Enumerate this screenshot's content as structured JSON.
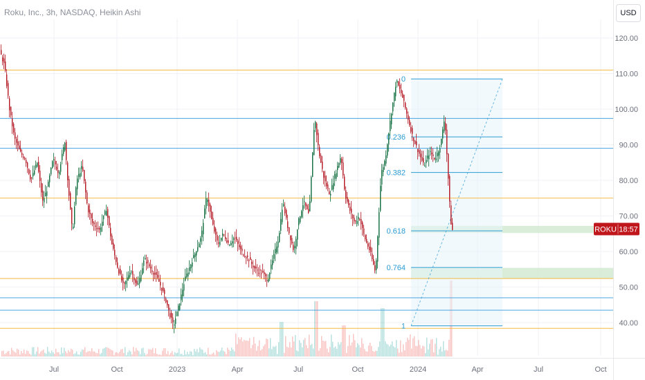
{
  "header": {
    "title": "Roku, Inc., 3h, NASDAQ, Heikin Ashi",
    "currency": "USD"
  },
  "price_tag": {
    "symbol": "ROKU",
    "countdown": "18:57",
    "price": 66.3
  },
  "colors": {
    "up": "#26a69a",
    "down": "#ef5350",
    "candle_up": "#0b6b3a",
    "candle_down": "#b2131f",
    "orange_level": "#f5b942",
    "blue_level": "#4aa3df",
    "fib": "#2a9bd3",
    "zone": "#cfe9cf",
    "tag": "#c0171d"
  },
  "chart_data": {
    "type": "candlestick",
    "title": "Roku, Inc., 3h, NASDAQ, Heikin Ashi",
    "y_axis": {
      "ticks": [
        "120.00",
        "110.00",
        "100.00",
        "90.00",
        "80.00",
        "70.00",
        "60.00",
        "50.00",
        "40.00"
      ],
      "range": [
        36,
        124
      ]
    },
    "x_axis": {
      "ticks": [
        "Jul",
        "Oct",
        "2023",
        "Apr",
        "Jul",
        "Oct",
        "2024",
        "Apr",
        "Jul",
        "Oct"
      ]
    },
    "price_path": [
      [
        0,
        117
      ],
      [
        8,
        112
      ],
      [
        15,
        100
      ],
      [
        22,
        92
      ],
      [
        30,
        88
      ],
      [
        38,
        86
      ],
      [
        46,
        80
      ],
      [
        55,
        85
      ],
      [
        63,
        74
      ],
      [
        70,
        78
      ],
      [
        78,
        86
      ],
      [
        86,
        82
      ],
      [
        95,
        91
      ],
      [
        100,
        78
      ],
      [
        106,
        65
      ],
      [
        112,
        80
      ],
      [
        120,
        84
      ],
      [
        128,
        72
      ],
      [
        135,
        68
      ],
      [
        145,
        66
      ],
      [
        155,
        72
      ],
      [
        163,
        62
      ],
      [
        172,
        55
      ],
      [
        180,
        50
      ],
      [
        190,
        55
      ],
      [
        200,
        50
      ],
      [
        210,
        58
      ],
      [
        220,
        55
      ],
      [
        230,
        52
      ],
      [
        240,
        47
      ],
      [
        247,
        42
      ],
      [
        252,
        39
      ],
      [
        260,
        45
      ],
      [
        268,
        52
      ],
      [
        276,
        56
      ],
      [
        284,
        60
      ],
      [
        292,
        64
      ],
      [
        300,
        76
      ],
      [
        308,
        68
      ],
      [
        316,
        62
      ],
      [
        324,
        65
      ],
      [
        332,
        62
      ],
      [
        340,
        64
      ],
      [
        350,
        60
      ],
      [
        360,
        58
      ],
      [
        370,
        55
      ],
      [
        380,
        54
      ],
      [
        388,
        52
      ],
      [
        396,
        58
      ],
      [
        404,
        64
      ],
      [
        410,
        74
      ],
      [
        418,
        66
      ],
      [
        426,
        60
      ],
      [
        432,
        68
      ],
      [
        440,
        74
      ],
      [
        448,
        70
      ],
      [
        456,
        98
      ],
      [
        462,
        88
      ],
      [
        470,
        80
      ],
      [
        478,
        76
      ],
      [
        486,
        82
      ],
      [
        494,
        87
      ],
      [
        500,
        76
      ],
      [
        506,
        72
      ],
      [
        514,
        68
      ],
      [
        520,
        70
      ],
      [
        528,
        64
      ],
      [
        536,
        60
      ],
      [
        544,
        54
      ],
      [
        552,
        82
      ],
      [
        558,
        86
      ],
      [
        566,
        98
      ],
      [
        574,
        108
      ],
      [
        582,
        104
      ],
      [
        590,
        98
      ],
      [
        598,
        92
      ],
      [
        606,
        88
      ],
      [
        614,
        84
      ],
      [
        622,
        88
      ],
      [
        630,
        86
      ],
      [
        638,
        90
      ],
      [
        644,
        98
      ],
      [
        648,
        84
      ],
      [
        652,
        70
      ],
      [
        654,
        66
      ]
    ],
    "horizontal_levels": [
      {
        "price": 111.0,
        "color": "orange"
      },
      {
        "price": 97.4,
        "color": "blue"
      },
      {
        "price": 89.0,
        "color": "blue"
      },
      {
        "price": 75.0,
        "color": "orange"
      },
      {
        "price": 52.4,
        "color": "orange"
      },
      {
        "price": 47.0,
        "color": "blue"
      },
      {
        "price": 43.5,
        "color": "blue"
      },
      {
        "price": 38.4,
        "color": "orange"
      }
    ],
    "fib_retracement": {
      "levels": [
        {
          "label": "0",
          "price": 108.5
        },
        {
          "label": "0.236",
          "price": 92.2
        },
        {
          "label": "0.382",
          "price": 82.2
        },
        {
          "label": "0.618",
          "price": 65.8
        },
        {
          "label": "0.764",
          "price": 55.5
        },
        {
          "label": "1",
          "price": 39.1
        }
      ]
    },
    "zones": [
      {
        "from": 65.2,
        "to": 67.2
      },
      {
        "from": 52.4,
        "to": 55.4
      }
    ]
  }
}
